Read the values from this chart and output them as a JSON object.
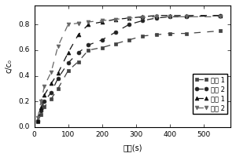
{
  "series": {
    "实例 1": {
      "x": [
        10,
        20,
        30,
        50,
        70,
        100,
        130,
        160,
        200,
        240,
        280,
        320,
        360,
        400,
        450,
        550
      ],
      "y": [
        0.04,
        0.1,
        0.16,
        0.22,
        0.3,
        0.44,
        0.51,
        0.6,
        0.62,
        0.65,
        0.68,
        0.71,
        0.72,
        0.73,
        0.73,
        0.75
      ],
      "marker": "s",
      "linestyle": "--",
      "color": "#444444"
    },
    "实例 2": {
      "x": [
        10,
        20,
        30,
        50,
        70,
        100,
        130,
        160,
        200,
        240,
        280,
        320,
        360,
        400,
        450,
        550
      ],
      "y": [
        0.05,
        0.13,
        0.2,
        0.27,
        0.38,
        0.5,
        0.58,
        0.64,
        0.68,
        0.74,
        0.8,
        0.83,
        0.85,
        0.86,
        0.86,
        0.87
      ],
      "marker": "o",
      "linestyle": "--",
      "color": "#222222"
    },
    "对比 1": {
      "x": [
        10,
        20,
        30,
        50,
        70,
        100,
        130,
        160,
        200,
        240,
        280,
        320,
        360,
        400,
        450,
        550
      ],
      "y": [
        0.05,
        0.15,
        0.25,
        0.34,
        0.42,
        0.58,
        0.72,
        0.8,
        0.82,
        0.84,
        0.85,
        0.86,
        0.87,
        0.87,
        0.87,
        0.87
      ],
      "marker": "^",
      "linestyle": "--",
      "color": "#111111"
    },
    "对比 2": {
      "x": [
        10,
        20,
        30,
        50,
        70,
        100,
        130
      ],
      "y": [
        0.07,
        0.2,
        0.32,
        0.43,
        0.63,
        0.8,
        0.81
      ],
      "x2": [
        130,
        160,
        200,
        240,
        280,
        320,
        360,
        400,
        450,
        550
      ],
      "y2": [
        0.81,
        0.82,
        0.83,
        0.84,
        0.85,
        0.855,
        0.86,
        0.86,
        0.86,
        0.86
      ],
      "marker": "v",
      "linestyle": "--",
      "color": "#666666"
    }
  },
  "xlabel": "时间(s)",
  "ylabel": "c/c₀",
  "xlim": [
    0,
    580
  ],
  "ylim": [
    0.0,
    0.95
  ],
  "xticks": [
    0,
    100,
    200,
    300,
    400,
    500
  ],
  "yticks": [
    0.0,
    0.2,
    0.4,
    0.6,
    0.8
  ],
  "legend_order": [
    "实例 1",
    "实例 2",
    "对比 1",
    "对比 2"
  ]
}
